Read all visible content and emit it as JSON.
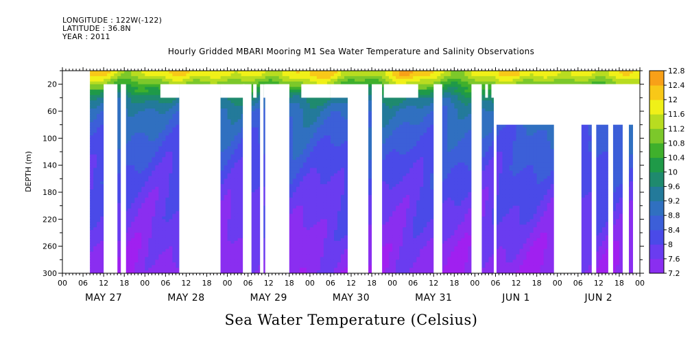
{
  "header": {
    "longitude": "LONGITUDE : 122W(-122)",
    "latitude": "LATITUDE : 36.8N",
    "year": "YEAR : 2011"
  },
  "chart_data": {
    "type": "heatmap",
    "title": "Hourly Gridded MBARI Mooring M1 Sea Water Temperature and Salinity Observations",
    "xlabel": "Sea Water Temperature (Celsius)",
    "ylabel": "DEPTH (m)",
    "x_hours_range": [
      0,
      168
    ],
    "x_hour_tick_labels": [
      "00",
      "06",
      "12",
      "18"
    ],
    "day_labels": [
      "MAY 27",
      "MAY 28",
      "MAY 29",
      "MAY 30",
      "MAY 31",
      "JUN  1",
      "JUN  2"
    ],
    "ylim": [
      300,
      0
    ],
    "y_ticks": [
      20,
      60,
      100,
      140,
      180,
      220,
      260,
      300
    ],
    "colorbar": {
      "levels": [
        7.2,
        7.6,
        8,
        8.4,
        8.8,
        9.2,
        9.6,
        10,
        10.4,
        10.8,
        11.2,
        11.6,
        12,
        12.4,
        12.8
      ],
      "tick_labels": [
        "7.2",
        "7.6",
        "8",
        "8.4",
        "8.8",
        "9.2",
        "9.6",
        "10",
        "10.4",
        "10.8",
        "11.2",
        "11.6",
        "12",
        "12.4",
        "12.8"
      ],
      "colors": [
        "#a020f0",
        "#8a2ef0",
        "#6a3cf0",
        "#4a4ae8",
        "#3c5fd8",
        "#3070c0",
        "#237a9a",
        "#1f8a6e",
        "#1f9a48",
        "#3fb02c",
        "#7cc82a",
        "#b8dc20",
        "#f0f018",
        "#f8c818",
        "#f8a018",
        "#f87018",
        "#f04018",
        "#d01818",
        "#a00000"
      ]
    },
    "profile_depths": [
      5,
      20,
      40,
      60,
      80,
      100,
      140,
      180,
      220,
      260,
      300
    ],
    "profile_temps": [
      11.8,
      10.9,
      9.6,
      9.0,
      8.8,
      8.6,
      8.3,
      8.0,
      7.8,
      7.5,
      7.3
    ],
    "data_start_hour": 8,
    "missing_regions": [
      {
        "x0": 12.0,
        "x1": 16.0,
        "y0": 20,
        "y1": 300
      },
      {
        "x0": 17.0,
        "x1": 18.5,
        "y0": 20,
        "y1": 300
      },
      {
        "x0": 28.5,
        "x1": 34.0,
        "y0": 20,
        "y1": 40
      },
      {
        "x0": 34.0,
        "x1": 46.0,
        "y0": 20,
        "y1": 300
      },
      {
        "x0": 46.0,
        "x1": 53.0,
        "y0": 20,
        "y1": 40
      },
      {
        "x0": 52.5,
        "x1": 55.0,
        "y0": 20,
        "y1": 300
      },
      {
        "x0": 55.5,
        "x1": 56.5,
        "y0": 20,
        "y1": 40
      },
      {
        "x0": 57.5,
        "x1": 58.5,
        "y0": 20,
        "y1": 300
      },
      {
        "x0": 58.5,
        "x1": 66.0,
        "y0": 20,
        "y1": 40
      },
      {
        "x0": 59.0,
        "x1": 66.0,
        "y0": 20,
        "y1": 300
      },
      {
        "x0": 69.5,
        "x1": 78.0,
        "y0": 20,
        "y1": 40
      },
      {
        "x0": 78.0,
        "x1": 83.0,
        "y0": 20,
        "y1": 40
      },
      {
        "x0": 83.0,
        "x1": 89.0,
        "y0": 20,
        "y1": 300
      },
      {
        "x0": 90.0,
        "x1": 93.0,
        "y0": 20,
        "y1": 300
      },
      {
        "x0": 93.5,
        "x1": 103.5,
        "y0": 20,
        "y1": 40
      },
      {
        "x0": 108.0,
        "x1": 110.5,
        "y0": 20,
        "y1": 300
      },
      {
        "x0": 119.0,
        "x1": 122.0,
        "y0": 20,
        "y1": 300
      },
      {
        "x0": 123.0,
        "x1": 123.8,
        "y0": 20,
        "y1": 40
      },
      {
        "x0": 124.8,
        "x1": 125.5,
        "y0": 20,
        "y1": 40
      },
      {
        "x0": 125.5,
        "x1": 168.0,
        "y0": 20,
        "y1": 40
      },
      {
        "x0": 125.5,
        "x1": 126.3,
        "y0": 20,
        "y1": 300
      },
      {
        "x0": 126.3,
        "x1": 168.0,
        "y0": 20,
        "y1": 80
      },
      {
        "x0": 143.0,
        "x1": 151.0,
        "y0": 20,
        "y1": 300
      },
      {
        "x0": 154.0,
        "x1": 155.3,
        "y0": 20,
        "y1": 300
      },
      {
        "x0": 166.0,
        "x1": 168.0,
        "y0": 20,
        "y1": 300
      },
      {
        "x0": 158.8,
        "x1": 160.2,
        "y0": 20,
        "y1": 300
      },
      {
        "x0": 163.0,
        "x1": 164.8,
        "y0": 20,
        "y1": 300
      }
    ]
  }
}
